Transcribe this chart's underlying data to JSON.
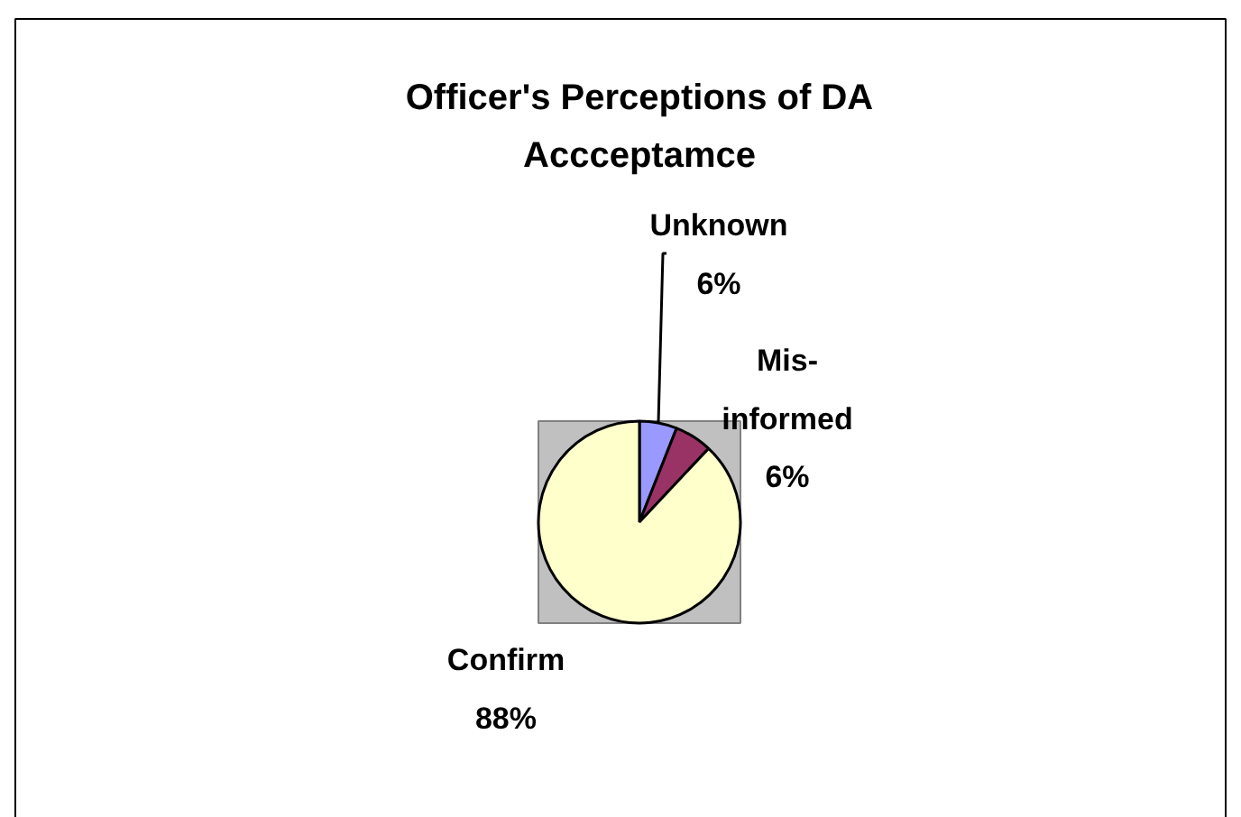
{
  "chart_data": {
    "type": "pie",
    "title": "Officer's Perceptions of DA Accceptamce",
    "categories": [
      "Unknown",
      "Mis-informed",
      "Confirm"
    ],
    "values": [
      6,
      6,
      88
    ],
    "colors": [
      "#9999ff",
      "#993366",
      "#ffffcc"
    ],
    "value_labels": [
      "6%",
      "6%",
      "88%"
    ]
  }
}
